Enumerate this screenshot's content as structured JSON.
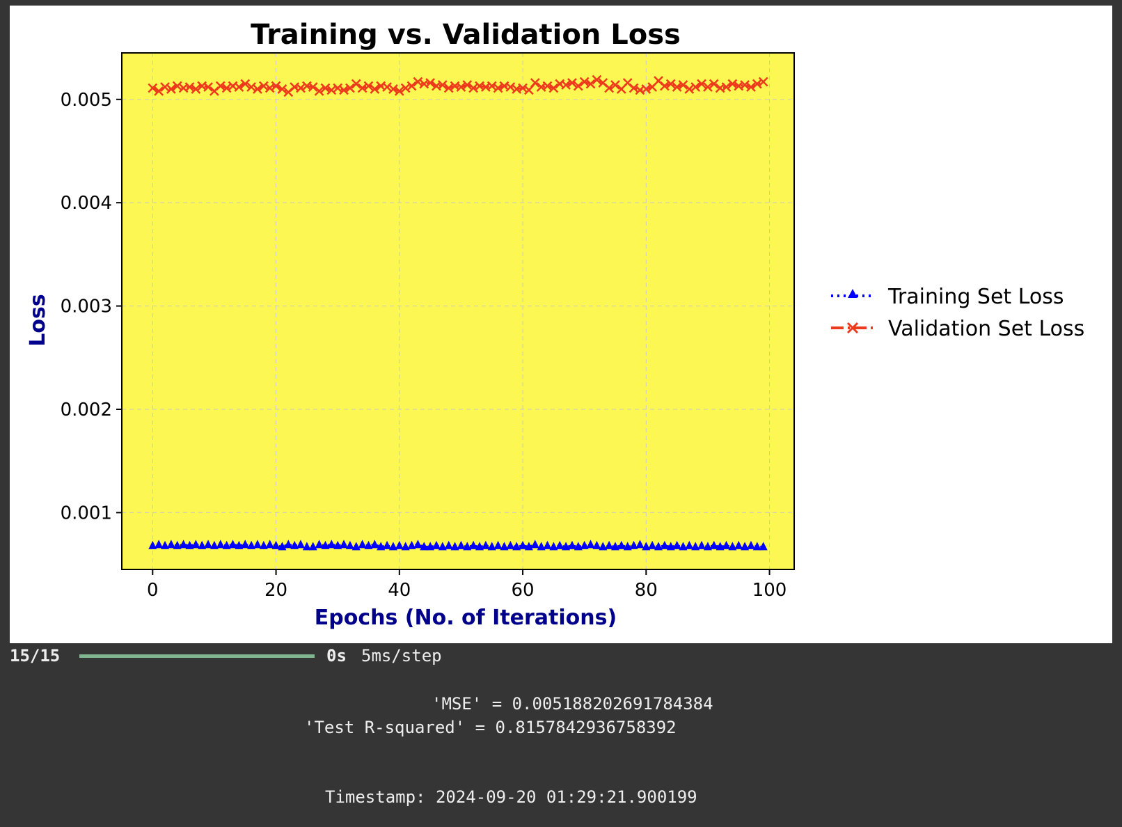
{
  "output": {
    "progress": {
      "count": "15/15",
      "fraction": 1.0,
      "time": "0s",
      "rate": "5ms/step"
    },
    "mse_text": "'MSE' = 0.005188202691784384",
    "r2_text": "'Test R-squared' = 0.8157842936758392",
    "timestamp_text": "Timestamp: 2024-09-20 01:29:21.900199"
  },
  "chart_data": {
    "type": "line",
    "title": "Training vs. Validation Loss",
    "xlabel": "Epochs (No. of Iterations)",
    "ylabel": "Loss",
    "xlim": [
      -5,
      104
    ],
    "ylim": [
      0.00045,
      0.00545
    ],
    "xticks": [
      0,
      20,
      40,
      60,
      80,
      100
    ],
    "xtick_labels": [
      "0",
      "20",
      "40",
      "60",
      "80",
      "100"
    ],
    "yticks": [
      0.001,
      0.002,
      0.003,
      0.004,
      0.005
    ],
    "ytick_labels": [
      "0.001",
      "0.002",
      "0.003",
      "0.004",
      "0.005"
    ],
    "grid": true,
    "plot_background": "#fcf752",
    "legend_placement": "outside-right",
    "x": [
      0,
      1,
      2,
      3,
      4,
      5,
      6,
      7,
      8,
      9,
      10,
      11,
      12,
      13,
      14,
      15,
      16,
      17,
      18,
      19,
      20,
      21,
      22,
      23,
      24,
      25,
      26,
      27,
      28,
      29,
      30,
      31,
      32,
      33,
      34,
      35,
      36,
      37,
      38,
      39,
      40,
      41,
      42,
      43,
      44,
      45,
      46,
      47,
      48,
      49,
      50,
      51,
      52,
      53,
      54,
      55,
      56,
      57,
      58,
      59,
      60,
      61,
      62,
      63,
      64,
      65,
      66,
      67,
      68,
      69,
      70,
      71,
      72,
      73,
      74,
      75,
      76,
      77,
      78,
      79,
      80,
      81,
      82,
      83,
      84,
      85,
      86,
      87,
      88,
      89,
      90,
      91,
      92,
      93,
      94,
      95,
      96,
      97,
      98,
      99
    ],
    "series": [
      {
        "name": "Training Set Loss",
        "color": "#0000ff",
        "marker": "triangle",
        "linestyle": "dotted",
        "values": [
          0.00068,
          0.00069,
          0.00068,
          0.00069,
          0.00068,
          0.00069,
          0.00068,
          0.00069,
          0.00068,
          0.00069,
          0.00068,
          0.00069,
          0.00068,
          0.00069,
          0.00068,
          0.00069,
          0.00068,
          0.00069,
          0.00068,
          0.00069,
          0.00068,
          0.00067,
          0.00069,
          0.00068,
          0.00069,
          0.00067,
          0.00067,
          0.00069,
          0.00068,
          0.00069,
          0.00068,
          0.00069,
          0.00068,
          0.00067,
          0.00069,
          0.00068,
          0.00069,
          0.00067,
          0.00068,
          0.00067,
          0.00068,
          0.00067,
          0.00068,
          0.00069,
          0.00067,
          0.00067,
          0.00068,
          0.00067,
          0.00068,
          0.00067,
          0.00068,
          0.00067,
          0.00068,
          0.00067,
          0.00068,
          0.00067,
          0.00068,
          0.00067,
          0.00068,
          0.00067,
          0.00068,
          0.00067,
          0.00069,
          0.00067,
          0.00068,
          0.00067,
          0.00068,
          0.00067,
          0.00068,
          0.00067,
          0.00068,
          0.00069,
          0.00068,
          0.00067,
          0.00068,
          0.00067,
          0.00068,
          0.00067,
          0.00068,
          0.00069,
          0.00067,
          0.00068,
          0.00067,
          0.00068,
          0.00067,
          0.00068,
          0.00067,
          0.00068,
          0.00067,
          0.00068,
          0.00067,
          0.00068,
          0.00067,
          0.00068,
          0.00067,
          0.00068,
          0.00067,
          0.00068,
          0.00067,
          0.00067
        ]
      },
      {
        "name": "Validation Set Loss",
        "color": "#ee3a1c",
        "marker": "x",
        "linestyle": "dashdot",
        "values": [
          0.00511,
          0.00508,
          0.00512,
          0.0051,
          0.00513,
          0.00511,
          0.00512,
          0.0051,
          0.00513,
          0.00512,
          0.00508,
          0.00513,
          0.00511,
          0.00513,
          0.00512,
          0.00515,
          0.00512,
          0.0051,
          0.00513,
          0.00511,
          0.00513,
          0.0051,
          0.00507,
          0.00512,
          0.00511,
          0.00513,
          0.00512,
          0.00508,
          0.00511,
          0.00509,
          0.00511,
          0.00509,
          0.00511,
          0.00515,
          0.00511,
          0.00513,
          0.0051,
          0.00513,
          0.00512,
          0.0051,
          0.00508,
          0.00511,
          0.00513,
          0.00517,
          0.00515,
          0.00516,
          0.00513,
          0.00514,
          0.00511,
          0.00513,
          0.00512,
          0.00514,
          0.00511,
          0.00513,
          0.00512,
          0.00513,
          0.00511,
          0.00513,
          0.00512,
          0.0051,
          0.00511,
          0.00509,
          0.00516,
          0.00512,
          0.00513,
          0.00511,
          0.00515,
          0.00514,
          0.00516,
          0.00513,
          0.00517,
          0.00515,
          0.00519,
          0.00516,
          0.00511,
          0.00514,
          0.0051,
          0.00516,
          0.00511,
          0.00509,
          0.0051,
          0.00512,
          0.00518,
          0.00513,
          0.00515,
          0.00512,
          0.00514,
          0.0051,
          0.00512,
          0.00515,
          0.00512,
          0.00515,
          0.00511,
          0.00512,
          0.00515,
          0.00513,
          0.00514,
          0.00512,
          0.00515,
          0.00517
        ]
      }
    ]
  }
}
